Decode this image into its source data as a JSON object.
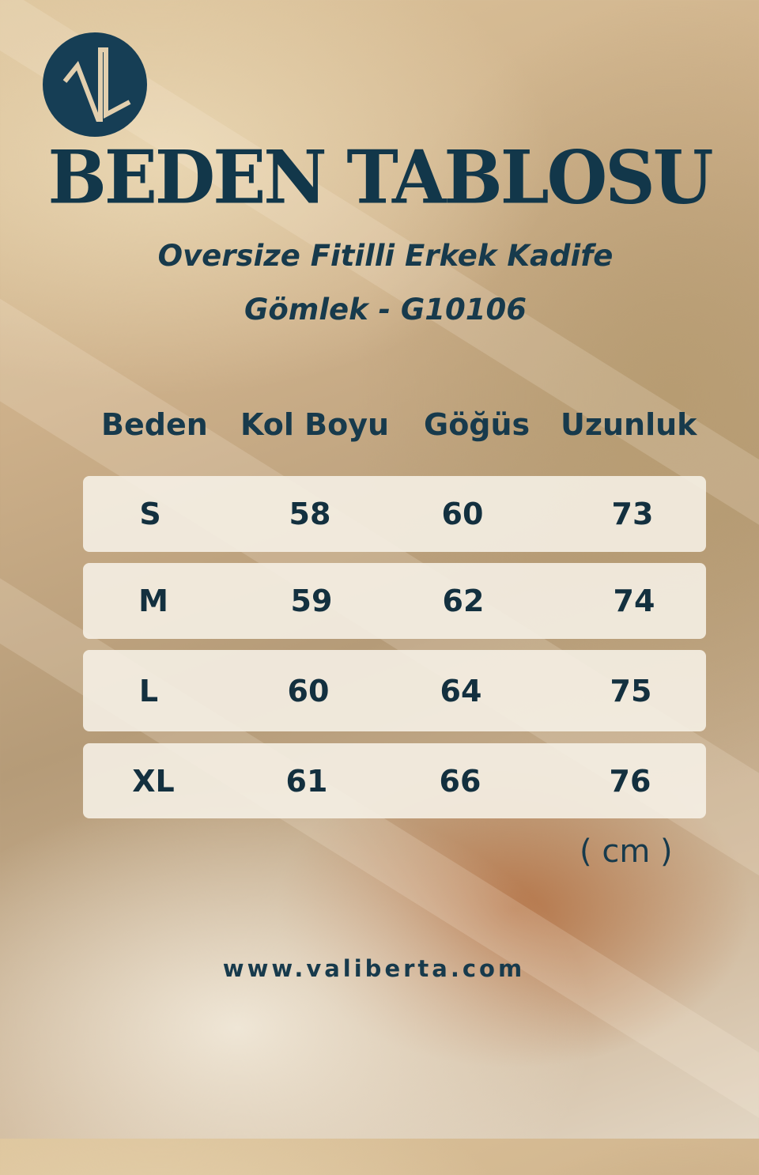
{
  "brand": {
    "logo_text": "VL",
    "color": "#163e55"
  },
  "title": "BEDEN TABLOSU",
  "subtitle": [
    "Oversize Fitilli Erkek Kadife",
    "Gömlek - G10106"
  ],
  "table": {
    "headers": [
      "Beden",
      "Kol Boyu",
      "Göğüs",
      "Uzunluk"
    ],
    "rows": [
      [
        "S",
        "58",
        "60",
        "73"
      ],
      [
        "M",
        "59",
        "62",
        "74"
      ],
      [
        "L",
        "60",
        "64",
        "75"
      ],
      [
        "XL",
        "61",
        "66",
        "76"
      ]
    ],
    "unit": "( cm )"
  },
  "website": "www.valiberta.com"
}
